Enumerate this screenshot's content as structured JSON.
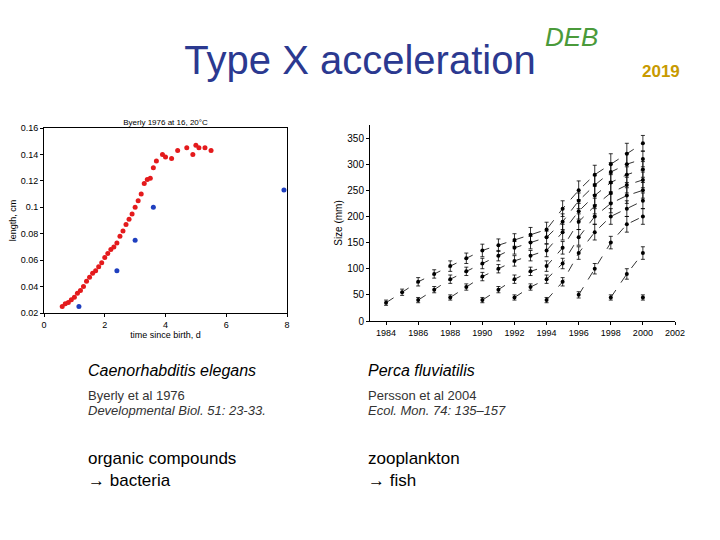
{
  "title": "Type X acceleration",
  "logo": {
    "text": "DEB",
    "year": "2019"
  },
  "chart_data": [
    {
      "type": "scatter",
      "title": "Byerly 1976 at 16, 20°C",
      "xlabel": "time since birth, d",
      "ylabel": "length, cm",
      "xlim": [
        0,
        8
      ],
      "xticks": [
        0,
        2,
        4,
        6,
        8
      ],
      "ylim": [
        0.02,
        0.16
      ],
      "yticks": [
        0.02,
        0.04,
        0.06,
        0.08,
        0.1,
        0.12,
        0.14,
        0.16
      ],
      "grid": false,
      "marker": "circle",
      "series": [
        {
          "color": "#e41a1c",
          "x": [
            0.6,
            0.7,
            0.8,
            0.9,
            1.0,
            1.1,
            1.2,
            1.3,
            1.4,
            1.5,
            1.6,
            1.7,
            1.8,
            1.9,
            2.0,
            2.1,
            2.2,
            2.3,
            2.4,
            2.5,
            2.6,
            2.7,
            2.8,
            2.9,
            3.0,
            3.1,
            3.2,
            3.3,
            3.4,
            3.5,
            3.6,
            3.7,
            3.9,
            4.0,
            4.2,
            4.4,
            4.7,
            4.9,
            5.0,
            5.1,
            5.3,
            5.5
          ],
          "values": [
            0.025,
            0.027,
            0.028,
            0.03,
            0.032,
            0.035,
            0.037,
            0.04,
            0.044,
            0.047,
            0.05,
            0.052,
            0.055,
            0.058,
            0.062,
            0.065,
            0.068,
            0.07,
            0.073,
            0.078,
            0.082,
            0.087,
            0.091,
            0.095,
            0.1,
            0.105,
            0.11,
            0.118,
            0.121,
            0.122,
            0.13,
            0.135,
            0.14,
            0.138,
            0.137,
            0.143,
            0.145,
            0.14,
            0.147,
            0.145,
            0.145,
            0.143
          ]
        },
        {
          "color": "#1f3fbf",
          "x": [
            1.15,
            2.4,
            3.0,
            3.6,
            7.9
          ],
          "values": [
            0.025,
            0.052,
            0.075,
            0.1,
            0.113
          ]
        }
      ]
    },
    {
      "type": "line",
      "ylabel": "Size (mm)",
      "xlim": [
        1983,
        2002
      ],
      "xticks": [
        1984,
        1986,
        1988,
        1990,
        1992,
        1994,
        1996,
        1998,
        2000,
        2002
      ],
      "ylim": [
        0,
        375
      ],
      "yticks": [
        0,
        50,
        100,
        150,
        200,
        250,
        300,
        350
      ],
      "grid": false,
      "color": "#000000",
      "marker": "circle",
      "line_style": "dashed",
      "series": [
        {
          "x": [
            1984,
            1985,
            1986,
            1987,
            1988,
            1989,
            1990,
            1991,
            1992,
            1993,
            1994,
            1995,
            1996,
            1997,
            1998,
            1999,
            2000
          ],
          "values": [
            35,
            55,
            75,
            90,
            105,
            120,
            135,
            145,
            155,
            165,
            175,
            215,
            250,
            280,
            300,
            320,
            340
          ],
          "errors": [
            5,
            6,
            8,
            8,
            10,
            10,
            12,
            12,
            12,
            14,
            14,
            15,
            18,
            18,
            20,
            20,
            15
          ]
        },
        {
          "x": [
            1986,
            1987,
            1988,
            1989,
            1990,
            1991,
            1992,
            1993,
            1994,
            1995,
            1996,
            1997,
            1998,
            1999,
            2000
          ],
          "values": [
            40,
            60,
            80,
            95,
            110,
            125,
            140,
            150,
            160,
            190,
            230,
            260,
            285,
            300,
            310
          ],
          "errors": [
            5,
            6,
            8,
            8,
            10,
            10,
            12,
            12,
            12,
            15,
            15,
            18,
            18,
            20,
            15
          ]
        },
        {
          "x": [
            1988,
            1989,
            1990,
            1991,
            1992,
            1993,
            1994,
            1995,
            1996,
            1997,
            1998,
            1999,
            2000
          ],
          "values": [
            45,
            65,
            85,
            100,
            115,
            125,
            135,
            170,
            210,
            240,
            265,
            280,
            290
          ],
          "errors": [
            5,
            6,
            8,
            8,
            10,
            10,
            12,
            15,
            15,
            18,
            18,
            15,
            15
          ]
        },
        {
          "x": [
            1990,
            1991,
            1992,
            1993,
            1994,
            1995,
            1996,
            1997,
            1998,
            1999,
            2000
          ],
          "values": [
            40,
            60,
            80,
            95,
            105,
            140,
            190,
            220,
            245,
            260,
            270
          ],
          "errors": [
            5,
            6,
            8,
            8,
            10,
            12,
            15,
            15,
            18,
            15,
            15
          ]
        },
        {
          "x": [
            1992,
            1993,
            1994,
            1995,
            1996,
            1997,
            1998,
            1999,
            2000
          ],
          "values": [
            45,
            65,
            80,
            110,
            160,
            200,
            225,
            240,
            250
          ],
          "errors": [
            5,
            6,
            8,
            10,
            15,
            15,
            18,
            15,
            15
          ]
        },
        {
          "x": [
            1994,
            1995,
            1996,
            1997,
            1998,
            1999,
            2000
          ],
          "values": [
            40,
            75,
            130,
            170,
            200,
            215,
            230
          ],
          "errors": [
            5,
            8,
            12,
            15,
            15,
            15,
            15
          ]
        },
        {
          "x": [
            1996,
            1997,
            1998,
            1999,
            2000
          ],
          "values": [
            50,
            100,
            150,
            185,
            200
          ],
          "errors": [
            6,
            10,
            12,
            15,
            15
          ]
        },
        {
          "x": [
            1998,
            1999,
            2000
          ],
          "values": [
            45,
            90,
            130
          ],
          "errors": [
            5,
            10,
            12
          ]
        },
        {
          "x": [
            2000
          ],
          "values": [
            45
          ],
          "errors": [
            5
          ]
        }
      ]
    }
  ],
  "panels": [
    {
      "species": "Caenorhabditis elegans",
      "reference": "Byerly et al 1976",
      "journal": "Developmental Biol. 51: 23-33.",
      "diet": [
        "organic compounds",
        "→ bacteria"
      ]
    },
    {
      "species": "Perca fluviatilis",
      "reference": "Persson et al 2004",
      "journal": "Ecol. Mon. 74: 135–157",
      "diet": [
        "zooplankton",
        "→ fish"
      ]
    }
  ]
}
